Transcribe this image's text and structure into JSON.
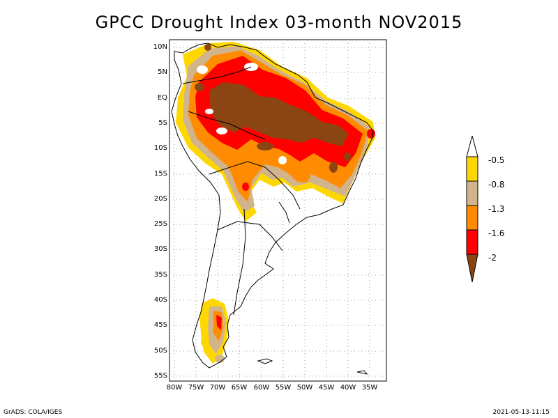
{
  "title": "GPCC Drought Index 03-month NOV2015",
  "axes": {
    "lat_labels": [
      "10N",
      "5N",
      "EQ",
      "5S",
      "10S",
      "15S",
      "20S",
      "25S",
      "30S",
      "35S",
      "40S",
      "45S",
      "50S",
      "55S"
    ],
    "lon_labels": [
      "80W",
      "75W",
      "70W",
      "65W",
      "60W",
      "55W",
      "50W",
      "45W",
      "40W",
      "35W"
    ]
  },
  "colorbar": {
    "levels": [
      "-0.5",
      "-0.8",
      "-1.3",
      "-1.6",
      "-2"
    ],
    "colors": {
      "above": "#ffffff",
      "c1": "#ffd700",
      "c2": "#d2b48c",
      "c3": "#ff8c00",
      "c4": "#ff0000",
      "c5": "#8b4513"
    }
  },
  "footer": {
    "left": "GrADS: COLA/IGES",
    "right": "2021-05-13-11:15"
  }
}
